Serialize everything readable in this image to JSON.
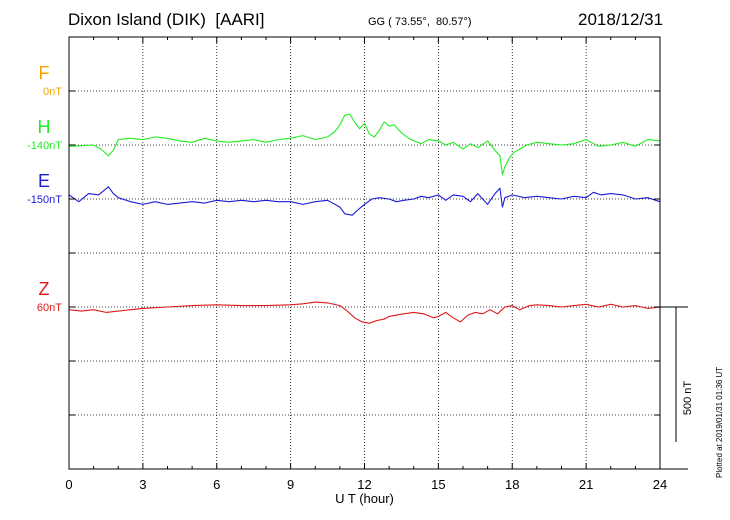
{
  "header": {
    "station": "Dixon Island (DIK)  [AARI]",
    "coords": "GG ( 73.55°,  80.57°)",
    "date": "2018/12/31"
  },
  "plotted_note": "Plotted at 2019/01/31 01:36 UT",
  "colors": {
    "F": "#f5a400",
    "H": "#22ee22",
    "E": "#1a1ad8",
    "Z": "#e01818",
    "axis": "#000000"
  },
  "chart_data": {
    "type": "line",
    "xlabel": "U T (hour)",
    "xlim": [
      0,
      24
    ],
    "x_ticks": [
      0,
      3,
      6,
      9,
      12,
      15,
      18,
      21,
      24
    ],
    "x_tick_labels": [
      "0",
      "3",
      "6",
      "9",
      "12",
      "15",
      "18",
      "21",
      "24"
    ],
    "y_panels": 8,
    "scale_label": "500 nT",
    "scale_nT": 500,
    "nT_per_panel": 200,
    "series": [
      {
        "name": "F",
        "baseline": "0nT",
        "panel_line": 1,
        "x": [],
        "values": []
      },
      {
        "name": "H",
        "baseline": "-140nT",
        "panel_line": 2,
        "x": [
          0,
          0.5,
          1,
          1.3,
          1.6,
          1.8,
          2,
          2.5,
          3,
          3.5,
          4,
          4.5,
          5,
          5.5,
          6,
          6.5,
          7,
          7.5,
          8,
          8.5,
          9,
          9.5,
          10,
          10.5,
          10.8,
          11,
          11.2,
          11.4,
          11.6,
          11.8,
          12,
          12.2,
          12.4,
          12.6,
          12.8,
          13,
          13.2,
          13.5,
          13.8,
          14,
          14.3,
          14.6,
          15,
          15.3,
          15.6,
          16,
          16.3,
          16.6,
          17,
          17.3,
          17.5,
          17.6,
          17.7,
          17.9,
          18.1,
          18.3,
          18.6,
          19,
          19.5,
          20,
          20.5,
          21,
          21.5,
          22,
          22.5,
          23,
          23.5,
          24
        ],
        "values": [
          -5,
          -3,
          0,
          -15,
          -40,
          -20,
          20,
          25,
          20,
          30,
          25,
          15,
          10,
          25,
          15,
          10,
          15,
          20,
          10,
          20,
          25,
          35,
          20,
          30,
          50,
          75,
          110,
          115,
          85,
          60,
          80,
          40,
          30,
          55,
          85,
          70,
          75,
          45,
          25,
          15,
          5,
          20,
          15,
          0,
          10,
          -15,
          5,
          -10,
          15,
          -20,
          -40,
          -110,
          -80,
          -45,
          -25,
          -15,
          0,
          10,
          5,
          0,
          5,
          20,
          -5,
          0,
          10,
          -5,
          20,
          15
        ]
      },
      {
        "name": "E",
        "baseline": "-150nT",
        "panel_line": 3,
        "x": [
          0,
          0.4,
          0.8,
          1.2,
          1.6,
          1.8,
          2,
          2.5,
          3,
          3.5,
          4,
          4.5,
          5,
          5.5,
          6,
          6.5,
          7,
          7.5,
          8,
          8.5,
          9,
          9.5,
          10,
          10.5,
          11,
          11.2,
          11.5,
          11.8,
          12,
          12.3,
          12.6,
          13,
          13.3,
          13.6,
          14,
          14.3,
          14.6,
          15,
          15.3,
          15.6,
          16,
          16.3,
          16.6,
          17,
          17.3,
          17.5,
          17.6,
          17.7,
          18,
          18.5,
          19,
          19.5,
          20,
          20.5,
          21,
          21.3,
          21.6,
          22,
          22.5,
          23,
          23.5,
          24
        ],
        "values": [
          15,
          -10,
          20,
          15,
          45,
          20,
          5,
          -10,
          -20,
          -10,
          -20,
          -15,
          -10,
          -15,
          -5,
          -10,
          -5,
          -10,
          -5,
          -10,
          -10,
          -20,
          -10,
          -5,
          -30,
          -55,
          -60,
          -35,
          -20,
          0,
          5,
          0,
          -10,
          -5,
          0,
          10,
          5,
          15,
          -5,
          15,
          10,
          -10,
          20,
          -20,
          20,
          40,
          -30,
          5,
          15,
          5,
          10,
          5,
          0,
          10,
          5,
          25,
          15,
          20,
          15,
          0,
          5,
          -10
        ]
      },
      {
        "name": "Z",
        "baseline": "60nT",
        "panel_line": 5,
        "x": [
          0,
          0.5,
          1,
          1.5,
          2,
          2.5,
          3,
          4,
          5,
          6,
          7,
          8,
          9,
          9.5,
          10,
          10.5,
          11,
          11.3,
          11.6,
          11.9,
          12.2,
          12.5,
          12.8,
          13,
          13.3,
          13.6,
          14,
          14.4,
          14.8,
          15,
          15.3,
          15.6,
          15.9,
          16.2,
          16.5,
          16.8,
          17.1,
          17.4,
          17.7,
          18,
          18.3,
          18.7,
          19,
          19.5,
          20,
          20.5,
          21,
          21.5,
          22,
          22.5,
          23,
          23.5,
          24
        ],
        "values": [
          -10,
          -15,
          -10,
          -20,
          -15,
          -10,
          -5,
          0,
          5,
          8,
          5,
          5,
          8,
          12,
          18,
          15,
          5,
          -15,
          -40,
          -55,
          -60,
          -50,
          -45,
          -35,
          -30,
          -25,
          -20,
          -25,
          -40,
          -35,
          -20,
          -40,
          -55,
          -30,
          -20,
          -25,
          -10,
          -25,
          0,
          5,
          -10,
          5,
          8,
          5,
          0,
          5,
          10,
          0,
          10,
          0,
          5,
          -5,
          0
        ]
      }
    ]
  }
}
